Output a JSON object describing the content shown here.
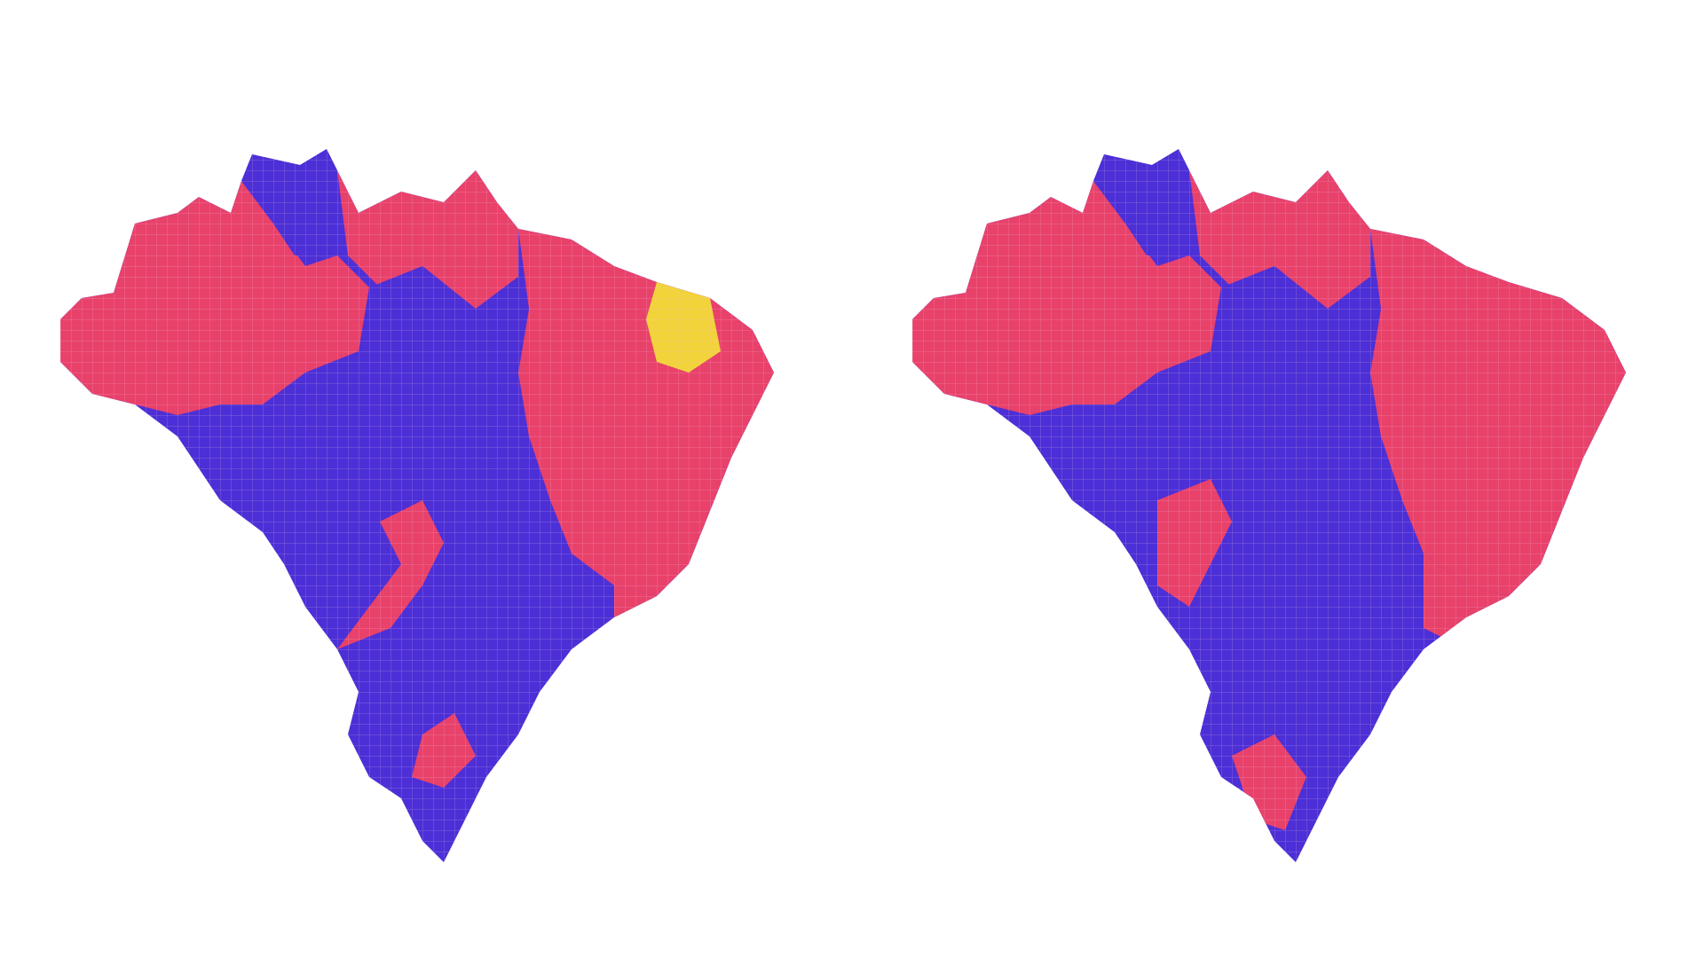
{
  "maps": [
    {
      "id": "left",
      "regions": [
        {
          "region": "north-west",
          "winner": "red"
        },
        {
          "region": "roraima",
          "winner": "blue"
        },
        {
          "region": "amapa",
          "winner": "red"
        },
        {
          "region": "para",
          "winner": "red"
        },
        {
          "region": "acre",
          "winner": "blue"
        },
        {
          "region": "center-west",
          "winner": "blue"
        },
        {
          "region": "northeast",
          "winner": "red"
        },
        {
          "region": "ceara",
          "winner": "yellow"
        },
        {
          "region": "south-east",
          "winner": "blue"
        },
        {
          "region": "south",
          "winner": "blue"
        }
      ]
    },
    {
      "id": "right",
      "regions": [
        {
          "region": "north-west",
          "winner": "red"
        },
        {
          "region": "roraima",
          "winner": "blue"
        },
        {
          "region": "amapa",
          "winner": "red"
        },
        {
          "region": "para",
          "winner": "red"
        },
        {
          "region": "acre",
          "winner": "blue"
        },
        {
          "region": "center-west",
          "winner": "blue"
        },
        {
          "region": "northeast",
          "winner": "red"
        },
        {
          "region": "mato-grosso-do-sul",
          "winner": "red"
        },
        {
          "region": "south-east",
          "winner": "blue"
        },
        {
          "region": "south",
          "winner": "blue"
        }
      ]
    }
  ],
  "colors": {
    "red": "#e8416a",
    "blue": "#4c2fd6",
    "yellow": "#f2d339",
    "border": "#f4c8e6",
    "background": "#ffffff"
  }
}
